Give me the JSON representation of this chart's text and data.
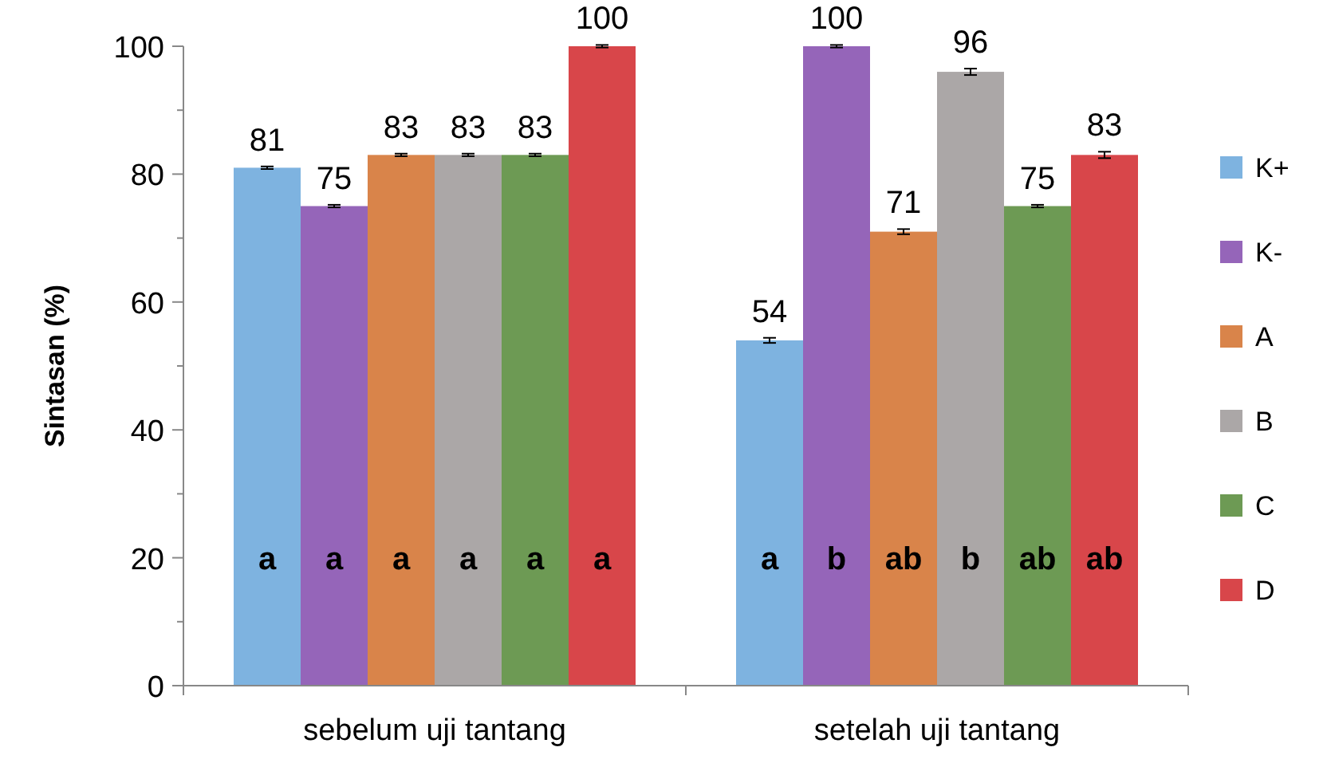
{
  "chart_data": {
    "type": "bar",
    "ylabel": "Sintasan (%)",
    "categories": [
      "sebelum uji tantang",
      "setelah uji tantang"
    ],
    "series": [
      {
        "name": "K+",
        "color": "#7eb3e0",
        "values": [
          81,
          54
        ],
        "errors": [
          0.2,
          0.4
        ]
      },
      {
        "name": "K-",
        "color": "#9565b9",
        "values": [
          75,
          100
        ],
        "errors": [
          0.2,
          0.2
        ]
      },
      {
        "name": "A",
        "color": "#d9844a",
        "values": [
          83,
          71
        ],
        "errors": [
          0.2,
          0.4
        ]
      },
      {
        "name": "B",
        "color": "#aba7a7",
        "values": [
          83,
          96
        ],
        "errors": [
          0.2,
          0.5
        ]
      },
      {
        "name": "C",
        "color": "#6d9a54",
        "values": [
          83,
          75
        ],
        "errors": [
          0.2,
          0.2
        ]
      },
      {
        "name": "D",
        "color": "#d8464a",
        "values": [
          100,
          83
        ],
        "errors": [
          0.2,
          0.5
        ]
      }
    ],
    "ylim": [
      0,
      100
    ],
    "yticks": [
      0,
      {
        "value": 10,
        "label": null
      },
      20,
      {
        "value": 30,
        "label": null
      },
      40,
      {
        "value": 50,
        "label": null
      },
      60,
      {
        "value": 70,
        "label": null
      },
      80,
      {
        "value": 90,
        "label": null
      },
      100
    ],
    "data_labels": true,
    "legend": "right",
    "grid": false,
    "annotations": [
      "a",
      "a",
      "a",
      "a",
      "a",
      "a",
      "a",
      "b",
      "ab",
      "b",
      "ab",
      "ab"
    ]
  }
}
